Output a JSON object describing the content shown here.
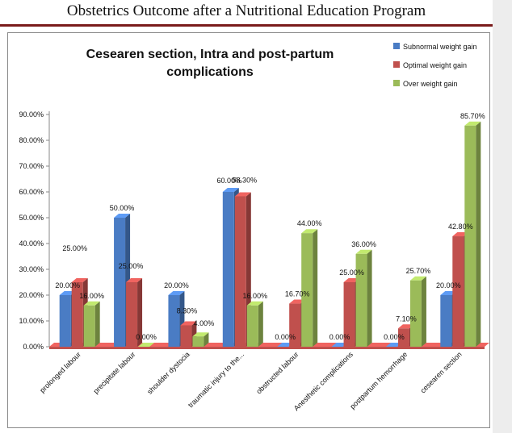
{
  "page": {
    "header_title": "Obstetrics Outcome after a Nutritional Education Program"
  },
  "colors": {
    "series_1": "#4a7cc4",
    "series_2": "#c0504d",
    "series_3": "#9bbb59",
    "floor": "#c0504d",
    "header_rule": "#7a1b1b"
  },
  "chart_data": {
    "type": "bar",
    "style": "3d-clustered-column",
    "title": "Cesearen section, Intra and post-partum complications",
    "title_lines": [
      "Cesearen section, Intra and post-partum",
      "complications"
    ],
    "xlabel": "",
    "ylabel": "",
    "ylim": [
      0,
      90
    ],
    "ytick_values": [
      0,
      10,
      20,
      30,
      40,
      50,
      60,
      70,
      80,
      90
    ],
    "ytick_labels": [
      "0.00%",
      "10.00%",
      "20.00%",
      "30.00%",
      "40.00%",
      "50.00%",
      "60.00%",
      "70.00%",
      "80.00%",
      "90.00%"
    ],
    "grid": false,
    "legend_position": "top-right",
    "categories": [
      "prolonged labour",
      "precipitate labour",
      "shoulder dystocia",
      "traumatic injury to the...",
      "obstructed labour",
      "Anesthetic complications",
      "postpartum hemorrhage",
      "cesearen section"
    ],
    "series": [
      {
        "name": "Subnormal weight gain",
        "values": [
          20,
          50,
          20,
          60,
          0,
          0,
          0,
          20
        ],
        "labels": [
          "20.00%",
          "50.00%",
          "20.00%",
          "60.00%",
          "0.00%",
          "0.00%",
          "0.00%",
          "20.00%"
        ]
      },
      {
        "name": "Optimal weight gain",
        "values": [
          25,
          25,
          8.3,
          58.3,
          16.7,
          25,
          7.1,
          42.8
        ],
        "labels": [
          "25.00%",
          "25.00%",
          "8.30%",
          "58.30%",
          "16.70%",
          "25.00%",
          "7.10%",
          "42.80%"
        ]
      },
      {
        "name": "Over weight gain",
        "values": [
          16,
          0,
          4,
          16,
          44,
          36,
          25.7,
          85.7
        ],
        "labels": [
          "16.00%",
          "0.00%",
          "4.00%",
          "16.00%",
          "44.00%",
          "36.00%",
          "25.70%",
          "85.70%"
        ]
      }
    ]
  }
}
